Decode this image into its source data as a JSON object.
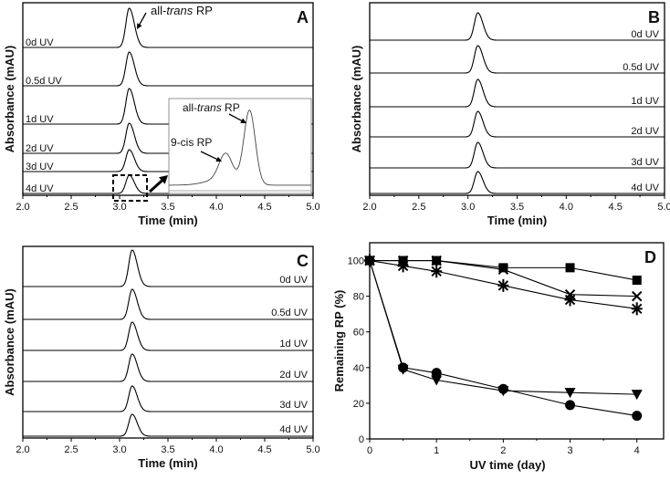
{
  "chart_data": [
    {
      "panel": "A",
      "type": "line",
      "xlabel": "Time (min)",
      "ylabel": "Absorbance (mAU)",
      "xlim": [
        2.0,
        5.0
      ],
      "xticks": [
        "2.0",
        "2.5",
        "3.0",
        "3.5",
        "4.0",
        "4.5",
        "5.0"
      ],
      "peak_time": 3.1,
      "traces": [
        {
          "label": "0d UV",
          "peak_height": 43
        },
        {
          "label": "0.5d UV",
          "peak_height": 37
        },
        {
          "label": "1d UV",
          "peak_height": 39
        },
        {
          "label": "2d UV",
          "peak_height": 33
        },
        {
          "label": "3d UV",
          "peak_height": 24
        },
        {
          "label": "4d UV",
          "peak_height": 20
        }
      ],
      "annotations": {
        "main_peak": "all-trans RP"
      },
      "inset": {
        "peaks": [
          {
            "label": "9-cis RP",
            "time": 4.1,
            "rel_height": 0.28
          },
          {
            "label": "all-trans RP",
            "time": 4.35,
            "rel_height": 0.78
          }
        ]
      }
    },
    {
      "panel": "B",
      "type": "line",
      "xlabel": "Time (min)",
      "ylabel": "Absorbance (mAU)",
      "xlim": [
        2.0,
        5.0
      ],
      "xticks": [
        "2.0",
        "2.5",
        "3.0",
        "3.5",
        "4.0",
        "4.5",
        "5.0"
      ],
      "peak_time": 3.1,
      "traces": [
        {
          "label": "0d UV",
          "peak_height": 30
        },
        {
          "label": "0.5d UV",
          "peak_height": 30
        },
        {
          "label": "1d UV",
          "peak_height": 30
        },
        {
          "label": "2d UV",
          "peak_height": 28
        },
        {
          "label": "3d UV",
          "peak_height": 28
        },
        {
          "label": "4d UV",
          "peak_height": 24
        }
      ]
    },
    {
      "panel": "C",
      "type": "line",
      "xlabel": "Time (min)",
      "ylabel": "Absorbance (mAU)",
      "xlim": [
        2.0,
        5.0
      ],
      "xticks": [
        "2.0",
        "2.5",
        "3.0",
        "3.5",
        "4.0",
        "4.5",
        "5.0"
      ],
      "peak_time": 3.13,
      "traces": [
        {
          "label": "0d UV",
          "peak_height": 40
        },
        {
          "label": "0.5d UV",
          "peak_height": 33
        },
        {
          "label": "1d UV",
          "peak_height": 31
        },
        {
          "label": "2d UV",
          "peak_height": 30
        },
        {
          "label": "3d UV",
          "peak_height": 28
        },
        {
          "label": "4d UV",
          "peak_height": 24
        }
      ]
    },
    {
      "panel": "D",
      "type": "line",
      "xlabel": "UV time (day)",
      "ylabel": "Remaining RP (%)",
      "xlim": [
        0,
        4.4
      ],
      "ylim": [
        0,
        110
      ],
      "xticks": [
        "0",
        "1",
        "2",
        "3",
        "4"
      ],
      "yticks": [
        "0",
        "20",
        "40",
        "60",
        "80",
        "100"
      ],
      "x": [
        0,
        0.5,
        1,
        2,
        3,
        4
      ],
      "series": [
        {
          "marker": "square",
          "values": [
            100,
            100,
            100,
            96,
            96,
            89
          ]
        },
        {
          "marker": "cross",
          "values": [
            100,
            100,
            100,
            95,
            81,
            80
          ]
        },
        {
          "marker": "asterisk",
          "values": [
            100,
            97,
            94,
            86,
            78,
            73
          ]
        },
        {
          "marker": "circle",
          "values": [
            100,
            40,
            37,
            28,
            19,
            13
          ]
        },
        {
          "marker": "triangle-down",
          "values": [
            100,
            39,
            33,
            27,
            26,
            25
          ]
        }
      ]
    }
  ]
}
